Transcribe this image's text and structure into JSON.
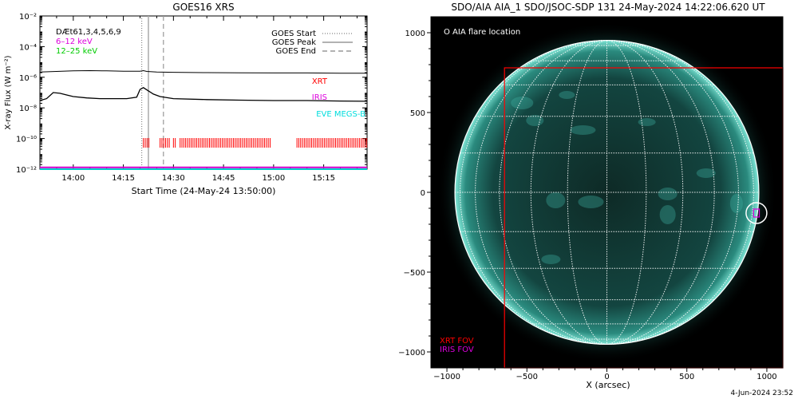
{
  "chart_data": [
    {
      "type": "line",
      "title": "GOES16 XRS",
      "xlabel": "Start Time (24-May-24 13:50:00)",
      "ylabel": "X-ray Flux (W m⁻²)",
      "x_ticks": [
        "14:00",
        "14:15",
        "14:30",
        "14:45",
        "15:00",
        "15:15"
      ],
      "y_ticks": [
        "10⁻²",
        "10⁻⁴",
        "10⁻⁶",
        "10⁻⁸",
        "10⁻¹⁰",
        "10⁻¹²"
      ],
      "y_scale": "log",
      "ylim": [
        1e-12,
        0.01
      ],
      "xlim_minutes_after_start": [
        0,
        98
      ],
      "series": [
        {
          "color": "#000000",
          "points": [
            [
              0,
              2.2e-06
            ],
            [
              5,
              2.4e-06
            ],
            [
              10,
              2.6e-06
            ],
            [
              15,
              2.7e-06
            ],
            [
              20,
              2.6e-06
            ],
            [
              25,
              2.5e-06
            ],
            [
              30,
              2.5e-06
            ],
            [
              31,
              2.7e-06
            ],
            [
              32,
              2.4e-06
            ],
            [
              35,
              2.2e-06
            ],
            [
              40,
              2.1e-06
            ],
            [
              50,
              2e-06
            ],
            [
              60,
              1.95e-06
            ],
            [
              70,
              1.9e-06
            ],
            [
              80,
              1.9e-06
            ],
            [
              90,
              1.85e-06
            ],
            [
              98,
              1.85e-06
            ]
          ]
        },
        {
          "color": "#000000",
          "points": [
            [
              0,
              3e-08
            ],
            [
              2,
              4e-08
            ],
            [
              4,
              1e-07
            ],
            [
              6,
              9e-08
            ],
            [
              8,
              7e-08
            ],
            [
              10,
              5.5e-08
            ],
            [
              14,
              4.5e-08
            ],
            [
              18,
              4e-08
            ],
            [
              22,
              4e-08
            ],
            [
              26,
              4e-08
            ],
            [
              29,
              5e-08
            ],
            [
              30,
              1.6e-07
            ],
            [
              31,
              2.1e-07
            ],
            [
              32,
              1.5e-07
            ],
            [
              34,
              8e-08
            ],
            [
              36,
              5.5e-08
            ],
            [
              40,
              4e-08
            ],
            [
              50,
              3.5e-08
            ],
            [
              60,
              3.2e-08
            ],
            [
              70,
              3e-08
            ],
            [
              80,
              3e-08
            ],
            [
              90,
              2.8e-08
            ],
            [
              98,
              2.7e-08
            ]
          ]
        },
        {
          "color": "#cc00cc",
          "flat_value": 1.3e-12
        },
        {
          "color": "#00cccc",
          "flat_value": 1e-12
        }
      ],
      "event_lines": [
        {
          "minute": 30.5,
          "style": "dotted"
        },
        {
          "minute": 32.5,
          "style": "solid"
        },
        {
          "minute": 37,
          "style": "dashed"
        }
      ],
      "xrt_coverage_minutes": [
        [
          31,
          33
        ],
        [
          36,
          39
        ],
        [
          40,
          40.6
        ],
        [
          42,
          69
        ],
        [
          77,
          98
        ]
      ],
      "legend_left": [
        {
          "text": "DÆt61,3,4,5,6,9",
          "color": "#000000"
        },
        {
          "text": "6–12 keV",
          "color": "#dd00dd"
        },
        {
          "text": "12–25 keV",
          "color": "#00cc00"
        }
      ],
      "legend_right": [
        {
          "text": "GOES Start",
          "style": "dotted"
        },
        {
          "text": "GOES Peak",
          "style": "solid"
        },
        {
          "text": "GOES End",
          "style": "dashed"
        }
      ],
      "instrument_labels": [
        {
          "text": "XRT",
          "color": "#ff0000"
        },
        {
          "text": "IRIS",
          "color": "#dd00dd"
        },
        {
          "text": "EVE MEGS-B",
          "color": "#00dddd"
        }
      ]
    },
    {
      "type": "image",
      "title": "SDO/AIA AIA_1 SDO/JSOC-SDP 131 24-May-2024 14:22:06.620 UT",
      "xlabel": "X (arcsec)",
      "x_ticks": [
        "−1000",
        "−500",
        "0",
        "500",
        "1000"
      ],
      "y_ticks": [
        "1000",
        "500",
        "0",
        "−500",
        "−1000"
      ],
      "xlim": [
        -1100,
        1100
      ],
      "ylim": [
        -1100,
        1100
      ],
      "solar_radius_arcsec": 950,
      "flare_location_arcsec": [
        935,
        -130
      ],
      "xrt_fov_arcsec": {
        "x": [
          -640,
          1100
        ],
        "y": [
          -1100,
          780
        ]
      },
      "iris_fov_arcsec": {
        "x": [
          917,
          953
        ],
        "y": [
          -155,
          -105
        ]
      },
      "legend_top": {
        "text": "O AIA flare location",
        "color": "#ffffff"
      },
      "legend_bottom": [
        {
          "text": "XRT FOV",
          "color": "#ff0000"
        },
        {
          "text": "IRIS FOV",
          "color": "#dd00dd"
        }
      ]
    }
  ],
  "footer": "4-Jun-2024 23:52"
}
